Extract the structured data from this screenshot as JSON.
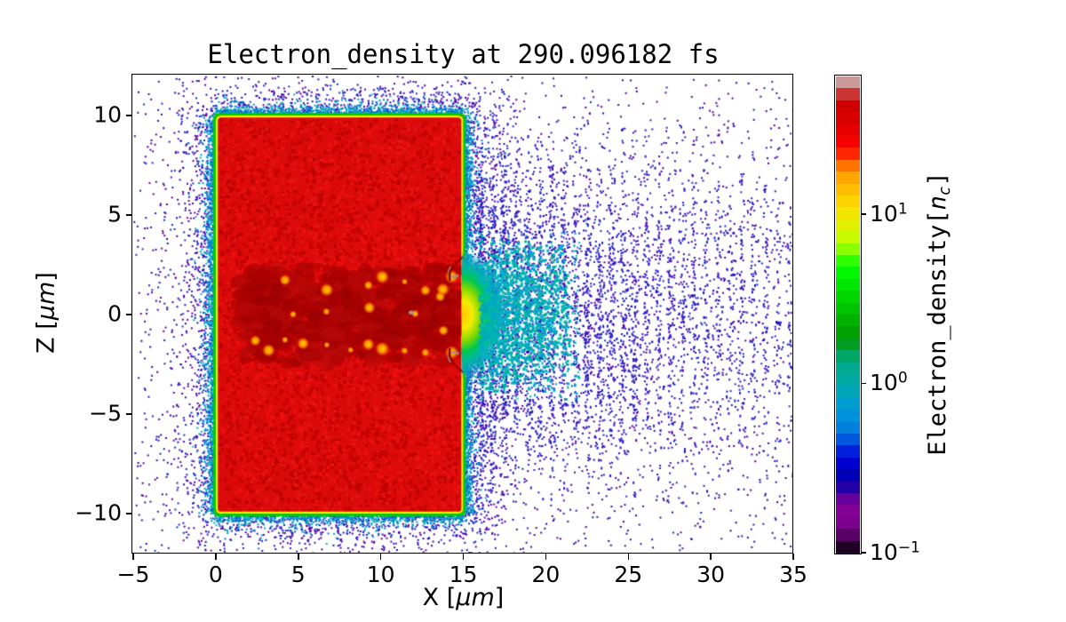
{
  "title": "Electron_density at 290.096182 fs",
  "axes": {
    "xlabel_prefix": "X [",
    "xlabel_italic": "μm",
    "xlabel_suffix": "]",
    "ylabel_prefix": "Z [",
    "ylabel_italic": "μm",
    "ylabel_suffix": "]"
  },
  "chart_data": {
    "type": "heatmap",
    "title": "Electron_density at 290.096182 fs",
    "xlabel": "X [μm]",
    "ylabel": "Z [μm]",
    "xlim": [
      -5,
      35
    ],
    "zlim": [
      -12,
      12
    ],
    "grid": false,
    "xticks": {
      "values": [
        -5,
        0,
        5,
        10,
        15,
        20,
        25,
        30,
        35
      ],
      "labels": [
        "−5",
        "0",
        "5",
        "10",
        "15",
        "20",
        "25",
        "30",
        "35"
      ]
    },
    "yticks": {
      "values": [
        10,
        5,
        0,
        -5,
        -10
      ],
      "labels": [
        "10",
        "5",
        "0",
        "−5",
        "−10"
      ]
    },
    "colorbar": {
      "label_prefix": "Electron_density[",
      "label_var": "n",
      "label_sub": "c",
      "label_suffix": "]",
      "scale": "log",
      "vmin": 0.1,
      "vmax": 65,
      "n_bands": 40,
      "ticks": [
        {
          "value": 10,
          "mantissa": "10",
          "exponent": "1"
        },
        {
          "value": 1,
          "mantissa": "10",
          "exponent": "0"
        },
        {
          "value": 0.1,
          "mantissa": "10",
          "exponent": "−1"
        }
      ],
      "colormap": "nipy_spectral",
      "colormap_stops": {
        "pos": [
          0,
          0.05,
          0.1,
          0.15,
          0.2,
          0.25,
          0.3,
          0.35,
          0.4,
          0.45,
          0.5,
          0.55,
          0.6,
          0.65,
          0.7,
          0.75,
          0.8,
          0.85,
          0.9,
          0.95,
          1
        ],
        "r": [
          0,
          0.4667,
          0.5333,
          0,
          0,
          0,
          0,
          0,
          0,
          0,
          0,
          0,
          0,
          0.7333,
          0.9333,
          1,
          1,
          1,
          0.8667,
          0.8,
          0.8
        ],
        "g": [
          0,
          0,
          0,
          0,
          0,
          0.4667,
          0.6,
          0.6667,
          0.6667,
          0.6,
          0.7333,
          0.8667,
          1,
          1,
          0.9333,
          0.8,
          0.6,
          0,
          0,
          0,
          0.8
        ],
        "b": [
          0,
          0.5333,
          0.6,
          0.6667,
          0.8667,
          0.8667,
          0.8667,
          0.6667,
          0.5333,
          0,
          0,
          0,
          0,
          0,
          0,
          0,
          0,
          0,
          0,
          0,
          0.8
        ]
      }
    },
    "features": {
      "plasma_slab": {
        "x_range": [
          0,
          15
        ],
        "z_range": [
          -10,
          10
        ],
        "fill": "#dc0a0a",
        "rim": "yellow-green"
      },
      "laser_channel": {
        "x_range": [
          1.6,
          15
        ],
        "z_range": [
          -2.4,
          2.4
        ],
        "hot_spot_rows_z": [
          1.55,
          -1.55
        ]
      },
      "exit_plume": {
        "x_center": 15,
        "z_range": [
          -3.2,
          3.2
        ]
      },
      "striations": {
        "x_range": [
          16,
          35
        ],
        "period_um": 0.72,
        "z_sigma_um": 4.4
      },
      "halo": {
        "description": "blue-purple scattered electrons surrounding slab",
        "extent_um": 4.5
      }
    }
  }
}
